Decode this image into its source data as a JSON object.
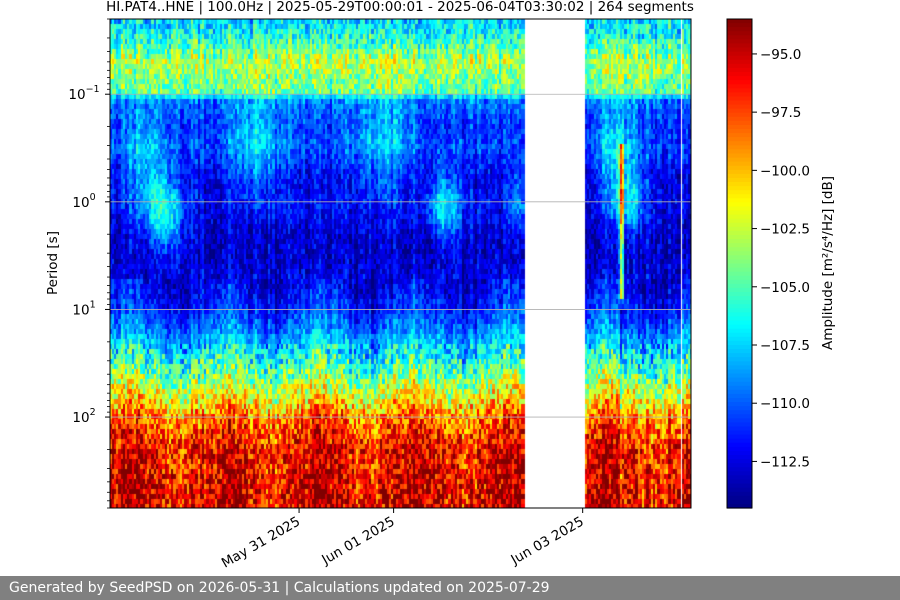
{
  "footer": {
    "generated_text": "Generated by SeedPSD on 2026-05-31 | Calculations updated on 2025-07-29"
  },
  "chart_data": {
    "type": "heatmap",
    "title": "HI.PAT4..HNE | 100.0Hz | 2025-05-29T00:00:01 - 2025-06-04T03:30:02 | 264 segments",
    "ylabel": "Period [s]",
    "colorbar_label": "Amplitude [m²/s⁴/Hz] [dB]",
    "y_scale": "log",
    "y_inverted": true,
    "ylim": [
      0.02,
      700
    ],
    "xlim": [
      "2025-05-29T00:00:01",
      "2025-06-04T03:30:02"
    ],
    "x_ticks": [
      {
        "date": "2025-05-31T00:00:00",
        "label": "May 31 2025"
      },
      {
        "date": "2025-06-01T00:00:00",
        "label": "Jun 01 2025"
      },
      {
        "date": "2025-06-03T00:00:00",
        "label": "Jun 03 2025"
      }
    ],
    "y_ticks": [
      {
        "value": 0.1,
        "base": "10",
        "exp": "−1"
      },
      {
        "value": 1,
        "base": "10",
        "exp": "0"
      },
      {
        "value": 10,
        "base": "10",
        "exp": "1"
      },
      {
        "value": 100,
        "base": "10",
        "exp": "2"
      }
    ],
    "colorbar": {
      "colormap": "jet",
      "range": [
        -114.5,
        -93.5
      ],
      "ticks": [
        {
          "value": -95.0,
          "label": "−95.0"
        },
        {
          "value": -97.5,
          "label": "−97.5"
        },
        {
          "value": -100.0,
          "label": "−100.0"
        },
        {
          "value": -102.5,
          "label": "−102.5"
        },
        {
          "value": -105.0,
          "label": "−105.0"
        },
        {
          "value": -107.5,
          "label": "−107.5"
        },
        {
          "value": -110.0,
          "label": "−110.0"
        },
        {
          "value": -112.5,
          "label": "−112.5"
        }
      ]
    },
    "grid": true,
    "data_gaps": [
      {
        "start": "2025-05-30T00:06:00",
        "end": "2025-05-30T00:14:00"
      },
      {
        "start": "2025-05-30T22:20:00",
        "end": "2025-05-30T22:35:00"
      },
      {
        "start": "2025-06-01T21:40:00",
        "end": "2025-06-01T21:55:00"
      },
      {
        "start": "2025-06-02T04:05:00",
        "end": "2025-06-02T04:15:00"
      },
      {
        "start": "2025-06-02T09:15:00",
        "end": "2025-06-03T00:30:00"
      },
      {
        "start": "2025-06-03T07:25:00",
        "end": "2025-06-03T07:35:00"
      },
      {
        "start": "2025-06-04T00:50:00",
        "end": "2025-06-04T01:00:00"
      }
    ],
    "profile": {
      "periods": [
        0.02,
        0.03,
        0.05,
        0.07,
        0.1,
        0.11,
        0.2,
        0.3,
        0.5,
        0.7,
        1,
        1.5,
        2,
        3,
        5,
        7,
        10,
        15,
        20,
        30,
        50,
        70,
        100,
        150,
        200,
        300,
        500,
        700
      ],
      "levels": [
        -107.5,
        -106,
        -103,
        -104,
        -105,
        -109.5,
        -111,
        -110.5,
        -112,
        -112.5,
        -112,
        -112.5,
        -113,
        -113,
        -112.5,
        -112,
        -111,
        -109.5,
        -108,
        -106,
        -103,
        -101,
        -98.5,
        -97,
        -96,
        -96,
        -95.5,
        -95.5
      ]
    },
    "events": [
      {
        "time": "2025-05-29T14:00:00",
        "period": 1.3,
        "width_s": 16000,
        "rel_width": 0.35,
        "amp": 6
      },
      {
        "time": "2025-06-01T13:00:00",
        "period": 1.1,
        "width_s": 14000,
        "rel_width": 0.3,
        "amp": 6
      },
      {
        "time": "2025-06-03T12:00:00",
        "period": 1.0,
        "width_s": 14000,
        "rel_width": 0.3,
        "amp": 4
      },
      {
        "time": "2025-06-02T07:30:00",
        "period": 1.0,
        "width_s": 10000,
        "rel_width": 0.3,
        "amp": 3
      },
      {
        "time": "2025-05-29T09:00:00",
        "period": 0.45,
        "width_s": 20000,
        "rel_width": 0.5,
        "amp": 4
      },
      {
        "time": "2025-05-30T13:00:00",
        "period": 0.3,
        "width_s": 25000,
        "rel_width": 0.5,
        "amp": 3.5
      },
      {
        "time": "2025-06-03T09:00:00",
        "period": 0.4,
        "width_s": 20000,
        "rel_width": 0.5,
        "amp": 4
      },
      {
        "time": "2025-05-31T22:00:00",
        "period": 0.3,
        "width_s": 30000,
        "rel_width": 0.5,
        "amp": 3
      }
    ],
    "spike": {
      "time": "2025-06-03T10:00:00",
      "period_range": [
        0.3,
        8
      ],
      "amp": 12,
      "dip_period_range": [
        10,
        700
      ],
      "dip_amp": -4
    }
  }
}
